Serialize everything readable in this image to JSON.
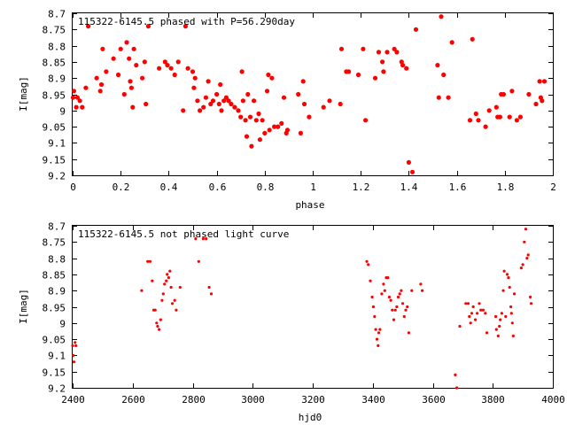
{
  "colors": {
    "marker": "#ff0000",
    "axis": "#000000",
    "background": "#ffffff"
  },
  "chart_data": [
    {
      "type": "scatter",
      "title": "115322-6145.5 phased with P=56.290day",
      "xlabel": "phase",
      "ylabel": "I[mag]",
      "xlim": [
        0,
        2
      ],
      "ylim": [
        9.2,
        8.7
      ],
      "y_inverted": true,
      "grid": false,
      "xticks": [
        "0",
        "0.2",
        "0.4",
        "0.6",
        "0.8",
        "1",
        "1.2",
        "1.4",
        "1.6",
        "1.8",
        "2"
      ],
      "yticks": [
        "8.7",
        "8.75",
        "8.8",
        "8.85",
        "8.9",
        "8.95",
        "9",
        "9.05",
        "9.1",
        "9.15",
        "9.2"
      ],
      "marker": "filled-circle",
      "points": [
        [
          0.002,
          8.96
        ],
        [
          0.005,
          8.94
        ],
        [
          0.015,
          8.99
        ],
        [
          0.02,
          8.96
        ],
        [
          0.03,
          8.97
        ],
        [
          0.04,
          8.99
        ],
        [
          0.055,
          8.93
        ],
        [
          0.065,
          8.74
        ],
        [
          0.1,
          8.9
        ],
        [
          0.115,
          8.94
        ],
        [
          0.12,
          8.92
        ],
        [
          0.125,
          8.81
        ],
        [
          0.14,
          8.88
        ],
        [
          0.17,
          8.84
        ],
        [
          0.19,
          8.89
        ],
        [
          0.2,
          8.81
        ],
        [
          0.215,
          8.95
        ],
        [
          0.225,
          8.79
        ],
        [
          0.235,
          8.84
        ],
        [
          0.24,
          8.91
        ],
        [
          0.245,
          8.93
        ],
        [
          0.25,
          8.99
        ],
        [
          0.255,
          8.81
        ],
        [
          0.265,
          8.86
        ],
        [
          0.29,
          8.9
        ],
        [
          0.3,
          8.85
        ],
        [
          0.305,
          8.98
        ],
        [
          0.315,
          8.74
        ],
        [
          0.36,
          8.87
        ],
        [
          0.385,
          8.85
        ],
        [
          0.395,
          8.86
        ],
        [
          0.41,
          8.87
        ],
        [
          0.425,
          8.89
        ],
        [
          0.44,
          8.85
        ],
        [
          0.46,
          9
        ],
        [
          0.47,
          8.74
        ],
        [
          0.48,
          8.87
        ],
        [
          0.5,
          8.88
        ],
        [
          0.505,
          8.93
        ],
        [
          0.51,
          8.9
        ],
        [
          0.52,
          8.97
        ],
        [
          0.53,
          9
        ],
        [
          0.545,
          8.99
        ],
        [
          0.555,
          8.96
        ],
        [
          0.565,
          8.91
        ],
        [
          0.575,
          8.98
        ],
        [
          0.585,
          8.97
        ],
        [
          0.6,
          8.95
        ],
        [
          0.61,
          8.98
        ],
        [
          0.615,
          8.92
        ],
        [
          0.62,
          9
        ],
        [
          0.63,
          8.97
        ],
        [
          0.64,
          8.96
        ],
        [
          0.65,
          8.97
        ],
        [
          0.66,
          8.98
        ],
        [
          0.675,
          8.99
        ],
        [
          0.69,
          9
        ],
        [
          0.7,
          9.02
        ],
        [
          0.705,
          8.88
        ],
        [
          0.71,
          8.97
        ],
        [
          0.72,
          9.03
        ],
        [
          0.725,
          9.08
        ],
        [
          0.73,
          8.95
        ],
        [
          0.74,
          9.02
        ],
        [
          0.745,
          9.11
        ],
        [
          0.755,
          8.97
        ],
        [
          0.765,
          9.03
        ],
        [
          0.775,
          9.01
        ],
        [
          0.78,
          9.09
        ],
        [
          0.79,
          9.03
        ],
        [
          0.8,
          9.07
        ],
        [
          0.81,
          8.94
        ],
        [
          0.815,
          8.89
        ],
        [
          0.82,
          9.06
        ],
        [
          0.83,
          8.9
        ],
        [
          0.84,
          9.05
        ],
        [
          0.855,
          9.05
        ],
        [
          0.87,
          9.04
        ],
        [
          0.88,
          8.96
        ],
        [
          0.89,
          9.07
        ],
        [
          0.895,
          9.06
        ],
        [
          0.94,
          8.95
        ],
        [
          0.95,
          9.07
        ],
        [
          0.96,
          8.91
        ],
        [
          0.965,
          8.98
        ],
        [
          0.985,
          9.02
        ],
        [
          1.045,
          8.99
        ],
        [
          1.07,
          8.97
        ],
        [
          1.115,
          8.98
        ],
        [
          1.12,
          8.81
        ],
        [
          1.14,
          8.88
        ],
        [
          1.15,
          8.88
        ],
        [
          1.19,
          8.89
        ],
        [
          1.21,
          8.81
        ],
        [
          1.22,
          9.03
        ],
        [
          1.26,
          8.9
        ],
        [
          1.275,
          8.82
        ],
        [
          1.29,
          8.85
        ],
        [
          1.295,
          8.88
        ],
        [
          1.31,
          8.82
        ],
        [
          1.34,
          8.81
        ],
        [
          1.35,
          8.82
        ],
        [
          1.37,
          8.85
        ],
        [
          1.375,
          8.86
        ],
        [
          1.39,
          8.87
        ],
        [
          1.4,
          9.16
        ],
        [
          1.415,
          9.19
        ],
        [
          1.43,
          8.75
        ],
        [
          1.52,
          8.86
        ],
        [
          1.525,
          8.96
        ],
        [
          1.535,
          8.71
        ],
        [
          1.545,
          8.89
        ],
        [
          1.565,
          8.96
        ],
        [
          1.58,
          8.79
        ],
        [
          1.655,
          9.03
        ],
        [
          1.665,
          8.78
        ],
        [
          1.68,
          9.01
        ],
        [
          1.69,
          9.03
        ],
        [
          1.72,
          9.05
        ],
        [
          1.735,
          9
        ],
        [
          1.765,
          8.99
        ],
        [
          1.77,
          9.02
        ],
        [
          1.78,
          9.02
        ],
        [
          1.785,
          8.95
        ],
        [
          1.795,
          8.95
        ],
        [
          1.82,
          9.02
        ],
        [
          1.83,
          8.94
        ],
        [
          1.85,
          9.03
        ],
        [
          1.865,
          9.02
        ],
        [
          1.9,
          8.95
        ],
        [
          1.93,
          8.98
        ],
        [
          1.945,
          8.91
        ],
        [
          1.95,
          8.96
        ],
        [
          1.955,
          8.97
        ],
        [
          1.965,
          8.91
        ]
      ]
    },
    {
      "type": "scatter",
      "title": "115322-6145.5 not phased light curve",
      "xlabel": "hjd0",
      "ylabel": "I[mag]",
      "xlim": [
        2400,
        4000
      ],
      "ylim": [
        9.2,
        8.7
      ],
      "y_inverted": true,
      "grid": false,
      "xticks": [
        "2400",
        "2600",
        "2800",
        "3000",
        "3200",
        "3400",
        "3600",
        "3800",
        "4000"
      ],
      "yticks": [
        "8.7",
        "8.75",
        "8.8",
        "8.85",
        "8.9",
        "8.95",
        "9",
        "9.05",
        "9.1",
        "9.15",
        "9.2"
      ],
      "marker": "small-filled-circle",
      "points": [
        [
          2400,
          9.07
        ],
        [
          2402,
          9.1
        ],
        [
          2404,
          9.12
        ],
        [
          2408,
          9.06
        ],
        [
          2411,
          9.07
        ],
        [
          2630,
          8.9
        ],
        [
          2650,
          8.81
        ],
        [
          2658,
          8.81
        ],
        [
          2665,
          8.87
        ],
        [
          2670,
          8.96
        ],
        [
          2675,
          8.96
        ],
        [
          2680,
          9
        ],
        [
          2683,
          9.01
        ],
        [
          2688,
          9.02
        ],
        [
          2693,
          8.99
        ],
        [
          2698,
          8.93
        ],
        [
          2702,
          8.91
        ],
        [
          2706,
          8.88
        ],
        [
          2712,
          8.87
        ],
        [
          2715,
          8.85
        ],
        [
          2720,
          8.86
        ],
        [
          2724,
          8.84
        ],
        [
          2728,
          8.89
        ],
        [
          2732,
          8.94
        ],
        [
          2740,
          8.93
        ],
        [
          2745,
          8.96
        ],
        [
          2758,
          8.89
        ],
        [
          2810,
          8.74
        ],
        [
          2820,
          8.81
        ],
        [
          2835,
          8.74
        ],
        [
          2845,
          8.74
        ],
        [
          2855,
          8.89
        ],
        [
          2862,
          8.91
        ],
        [
          3380,
          8.81
        ],
        [
          3385,
          8.82
        ],
        [
          3392,
          8.87
        ],
        [
          3398,
          8.92
        ],
        [
          3402,
          8.95
        ],
        [
          3406,
          8.98
        ],
        [
          3410,
          9.02
        ],
        [
          3414,
          9.05
        ],
        [
          3418,
          9.07
        ],
        [
          3420,
          9.03
        ],
        [
          3424,
          9.02
        ],
        [
          3430,
          8.91
        ],
        [
          3436,
          8.88
        ],
        [
          3440,
          8.9
        ],
        [
          3445,
          8.86
        ],
        [
          3450,
          8.86
        ],
        [
          3455,
          8.92
        ],
        [
          3460,
          8.93
        ],
        [
          3465,
          8.96
        ],
        [
          3470,
          8.99
        ],
        [
          3475,
          8.96
        ],
        [
          3480,
          8.95
        ],
        [
          3485,
          8.92
        ],
        [
          3490,
          8.91
        ],
        [
          3495,
          8.9
        ],
        [
          3500,
          8.94
        ],
        [
          3505,
          8.98
        ],
        [
          3510,
          8.96
        ],
        [
          3515,
          8.95
        ],
        [
          3520,
          9.03
        ],
        [
          3530,
          8.9
        ],
        [
          3560,
          8.88
        ],
        [
          3565,
          8.9
        ],
        [
          3675,
          9.16
        ],
        [
          3680,
          9.2
        ],
        [
          3690,
          9.01
        ],
        [
          3710,
          8.94
        ],
        [
          3718,
          8.94
        ],
        [
          3722,
          8.98
        ],
        [
          3726,
          9
        ],
        [
          3730,
          8.97
        ],
        [
          3735,
          8.95
        ],
        [
          3742,
          8.99
        ],
        [
          3748,
          8.97
        ],
        [
          3755,
          8.94
        ],
        [
          3760,
          8.96
        ],
        [
          3768,
          8.96
        ],
        [
          3775,
          8.97
        ],
        [
          3780,
          9.03
        ],
        [
          3810,
          8.98
        ],
        [
          3812,
          9.02
        ],
        [
          3818,
          9.04
        ],
        [
          3822,
          9.01
        ],
        [
          3825,
          8.99
        ],
        [
          3830,
          8.97
        ],
        [
          3835,
          8.9
        ],
        [
          3838,
          8.84
        ],
        [
          3843,
          8.98
        ],
        [
          3848,
          8.85
        ],
        [
          3852,
          8.86
        ],
        [
          3856,
          8.89
        ],
        [
          3860,
          8.95
        ],
        [
          3862,
          8.97
        ],
        [
          3865,
          9
        ],
        [
          3868,
          9.04
        ],
        [
          3872,
          8.91
        ],
        [
          3895,
          8.83
        ],
        [
          3900,
          8.82
        ],
        [
          3905,
          8.75
        ],
        [
          3910,
          8.71
        ],
        [
          3914,
          8.8
        ],
        [
          3918,
          8.79
        ],
        [
          3925,
          8.92
        ],
        [
          3928,
          8.94
        ]
      ]
    }
  ]
}
